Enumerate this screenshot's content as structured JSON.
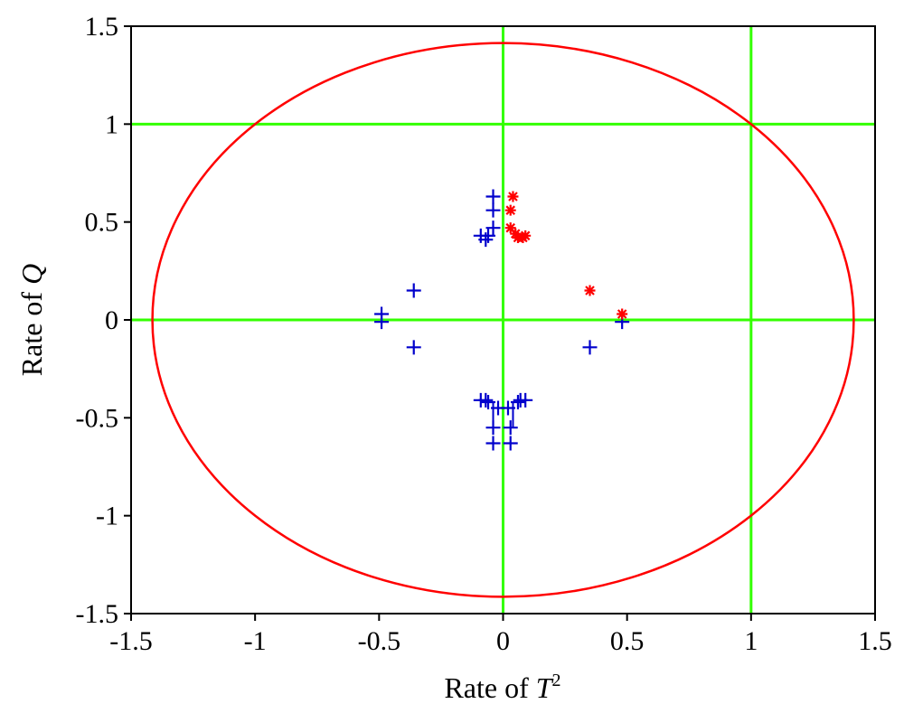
{
  "colors": {
    "ellipse": "#ff0000",
    "guide_lines": "#33ff00",
    "series_blue": "#0000cc",
    "series_red": "#ff0000",
    "frame": "#000000"
  },
  "chart_data": {
    "type": "scatter",
    "title": "",
    "xlabel": {
      "prefix": "Rate of ",
      "var": "T",
      "sup": "2"
    },
    "ylabel": {
      "prefix": "Rate of ",
      "var": "Q"
    },
    "xlim": [
      -1.5,
      1.5
    ],
    "ylim": [
      -1.5,
      1.5
    ],
    "xticks": [
      -1.5,
      -1,
      -0.5,
      0,
      0.5,
      1,
      1.5
    ],
    "yticks": [
      -1.5,
      -1,
      -0.5,
      0,
      0.5,
      1,
      1.5
    ],
    "xtick_labels": [
      "-1.5",
      "-1",
      "-0.5",
      "0",
      "0.5",
      "1",
      "1.5"
    ],
    "ytick_labels": [
      "-1.5",
      "-1",
      "-0.5",
      "0",
      "0.5",
      "1",
      "1.5"
    ],
    "grid": false,
    "reference_lines": {
      "x": [
        0,
        1
      ],
      "y": [
        0,
        1
      ]
    },
    "control_limit_circle": {
      "center": [
        0,
        0
      ],
      "radius": 1.414
    },
    "series": [
      {
        "marker": "plus",
        "color": "blue",
        "points": [
          [
            -0.04,
            0.63
          ],
          [
            -0.04,
            0.56
          ],
          [
            -0.04,
            0.47
          ],
          [
            -0.06,
            0.43
          ],
          [
            -0.09,
            0.43
          ],
          [
            -0.07,
            0.41
          ],
          [
            -0.36,
            0.15
          ],
          [
            -0.49,
            0.03
          ],
          [
            -0.49,
            -0.01
          ],
          [
            -0.36,
            -0.14
          ],
          [
            0.35,
            -0.14
          ],
          [
            0.48,
            -0.01
          ],
          [
            -0.09,
            -0.41
          ],
          [
            -0.07,
            -0.41
          ],
          [
            -0.06,
            -0.42
          ],
          [
            -0.02,
            -0.45
          ],
          [
            0.02,
            -0.45
          ],
          [
            0.06,
            -0.42
          ],
          [
            0.07,
            -0.41
          ],
          [
            0.09,
            -0.41
          ],
          [
            -0.04,
            -0.55
          ],
          [
            0.03,
            -0.55
          ],
          [
            -0.04,
            -0.63
          ],
          [
            0.03,
            -0.63
          ]
        ]
      },
      {
        "marker": "star",
        "color": "red",
        "points": [
          [
            0.04,
            0.63
          ],
          [
            0.03,
            0.56
          ],
          [
            0.03,
            0.47
          ],
          [
            0.05,
            0.44
          ],
          [
            0.06,
            0.42
          ],
          [
            0.08,
            0.42
          ],
          [
            0.09,
            0.43
          ],
          [
            0.35,
            0.15
          ],
          [
            0.48,
            0.03
          ]
        ]
      }
    ],
    "connector_segments": [
      [
        [
          -0.04,
          0.47
        ],
        [
          -0.04,
          0.43
        ],
        [
          -0.06,
          0.43
        ]
      ],
      [
        [
          -0.06,
          -0.42
        ],
        [
          -0.04,
          -0.42
        ],
        [
          -0.04,
          -0.45
        ],
        [
          0.04,
          -0.45
        ],
        [
          0.04,
          -0.42
        ],
        [
          0.06,
          -0.42
        ]
      ],
      [
        [
          -0.04,
          -0.45
        ],
        [
          -0.04,
          -0.55
        ]
      ],
      [
        [
          0.04,
          -0.45
        ],
        [
          0.04,
          -0.55
        ]
      ]
    ]
  }
}
